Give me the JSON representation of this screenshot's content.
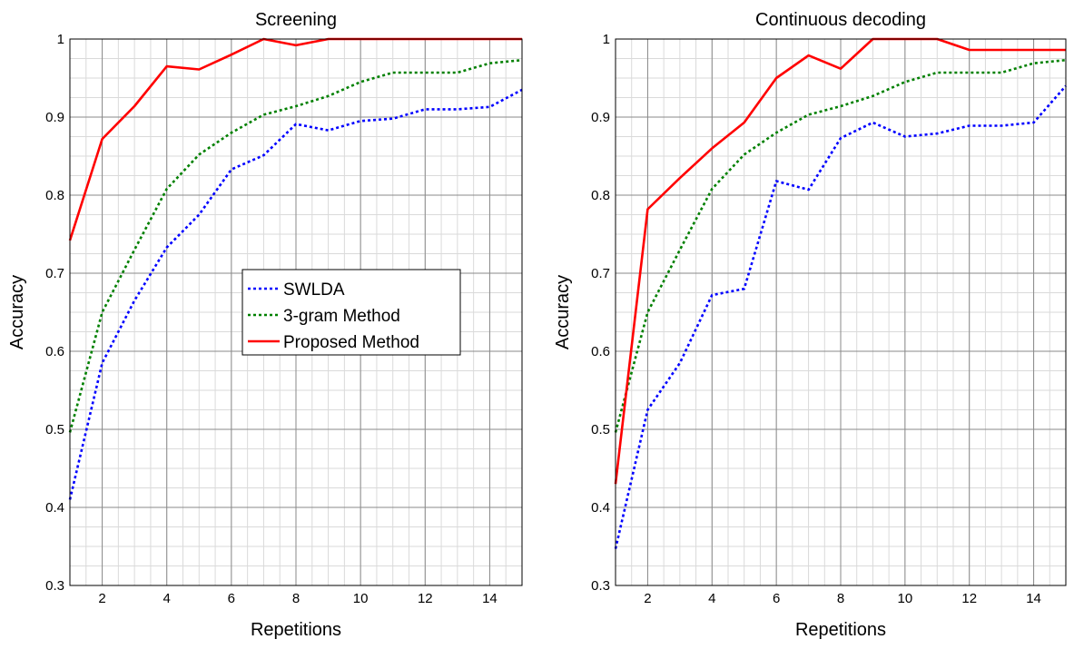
{
  "chart_data": [
    {
      "type": "line",
      "title": "Screening",
      "xlabel": "Repetitions",
      "ylabel": "Accuracy",
      "xlim": [
        1,
        15
      ],
      "ylim": [
        0.3,
        1.0
      ],
      "xticks": [
        2,
        4,
        6,
        8,
        10,
        12,
        14
      ],
      "yticks": [
        0.3,
        0.4,
        0.5,
        0.6,
        0.7,
        0.8,
        0.9,
        1
      ],
      "grid": true,
      "legend": "center",
      "x": [
        1,
        2,
        3,
        4,
        5,
        6,
        7,
        8,
        9,
        10,
        11,
        12,
        13,
        14,
        15
      ],
      "series": [
        {
          "name": "SWLDA",
          "color": "#0000ff",
          "style": "dotted",
          "values": [
            0.41,
            0.585,
            0.665,
            0.733,
            0.775,
            0.833,
            0.851,
            0.891,
            0.883,
            0.895,
            0.898,
            0.91,
            0.91,
            0.913,
            0.935
          ]
        },
        {
          "name": "3-gram Method",
          "color": "#008000",
          "style": "dotted",
          "values": [
            0.496,
            0.65,
            0.73,
            0.808,
            0.852,
            0.88,
            0.903,
            0.914,
            0.927,
            0.945,
            0.957,
            0.957,
            0.957,
            0.969,
            0.973
          ]
        },
        {
          "name": "Proposed Method",
          "color": "#ff0000",
          "style": "solid",
          "values": [
            0.742,
            0.872,
            0.914,
            0.965,
            0.961,
            0.98,
            1.0,
            0.992,
            1.0,
            1.0,
            1.0,
            1.0,
            1.0,
            1.0,
            1.0
          ]
        }
      ]
    },
    {
      "type": "line",
      "title": "Continuous decoding",
      "xlabel": "Repetitions",
      "ylabel": "Accuracy",
      "xlim": [
        1,
        15
      ],
      "ylim": [
        0.3,
        1.0
      ],
      "xticks": [
        2,
        4,
        6,
        8,
        10,
        12,
        14
      ],
      "yticks": [
        0.3,
        0.4,
        0.5,
        0.6,
        0.7,
        0.8,
        0.9,
        1
      ],
      "grid": true,
      "x": [
        1,
        2,
        3,
        4,
        5,
        6,
        7,
        8,
        9,
        10,
        11,
        12,
        13,
        14,
        15
      ],
      "series": [
        {
          "name": "SWLDA",
          "color": "#0000ff",
          "style": "dotted",
          "values": [
            0.347,
            0.525,
            0.585,
            0.672,
            0.68,
            0.818,
            0.807,
            0.873,
            0.893,
            0.875,
            0.879,
            0.889,
            0.889,
            0.893,
            0.94
          ]
        },
        {
          "name": "3-gram Method",
          "color": "#008000",
          "style": "dotted",
          "values": [
            0.496,
            0.65,
            0.73,
            0.808,
            0.852,
            0.88,
            0.903,
            0.914,
            0.927,
            0.945,
            0.957,
            0.957,
            0.957,
            0.969,
            0.973
          ]
        },
        {
          "name": "Proposed Method",
          "color": "#ff0000",
          "style": "solid",
          "values": [
            0.43,
            0.782,
            0.822,
            0.86,
            0.893,
            0.95,
            0.979,
            0.962,
            1.0,
            1.0,
            1.0,
            0.986,
            0.986,
            0.986,
            0.986
          ]
        }
      ]
    }
  ]
}
